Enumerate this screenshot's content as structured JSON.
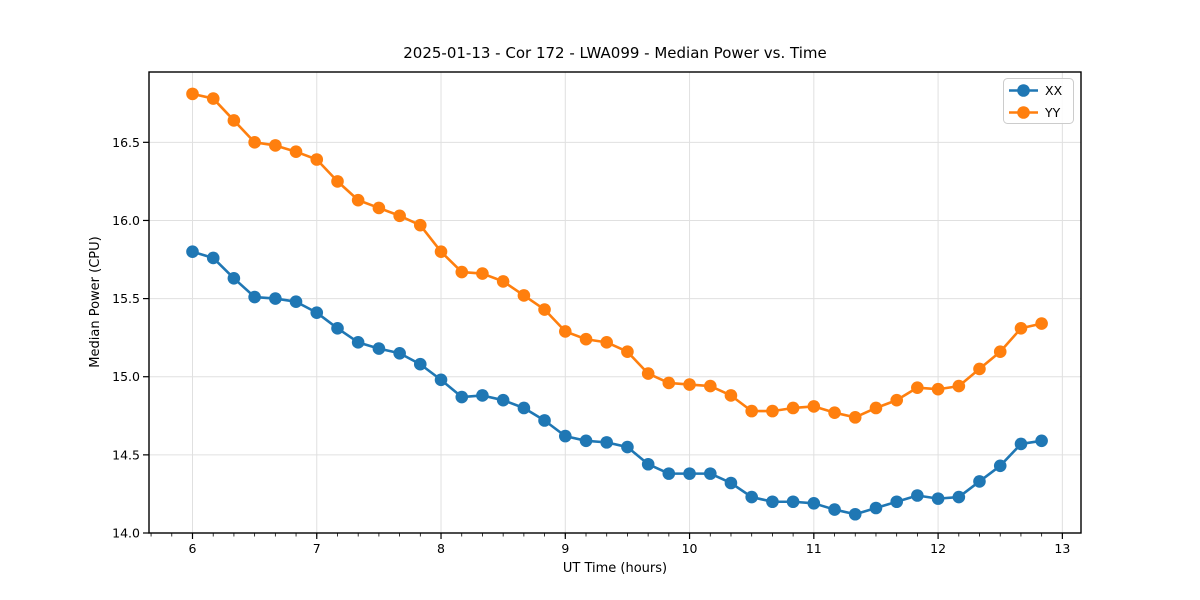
{
  "chart_data": {
    "type": "line",
    "title": "2025-01-13 - Cor 172 - LWA099 - Median Power vs. Time",
    "xlabel": "UT Time (hours)",
    "ylabel": "Median Power (CPU)",
    "xlim": [
      5.65,
      13.15
    ],
    "ylim": [
      14.0,
      16.95
    ],
    "xticks": [
      6,
      7,
      8,
      9,
      10,
      11,
      12,
      13
    ],
    "xticklabels": [
      "6",
      "7",
      "8",
      "9",
      "10",
      "11",
      "12",
      "13"
    ],
    "yticks": [
      14.0,
      14.5,
      15.0,
      15.5,
      16.0,
      16.5
    ],
    "yticklabels": [
      "14.0",
      "14.5",
      "15.0",
      "15.5",
      "16.0",
      "16.5"
    ],
    "x_minor_interval": 0.166667,
    "grid": true,
    "grid_color": "#e0e0e0",
    "legend_position": "upper right",
    "marker": "circle",
    "x": [
      6.0,
      6.167,
      6.333,
      6.5,
      6.667,
      6.833,
      7.0,
      7.167,
      7.333,
      7.5,
      7.667,
      7.833,
      8.0,
      8.167,
      8.333,
      8.5,
      8.667,
      8.833,
      9.0,
      9.167,
      9.333,
      9.5,
      9.667,
      9.833,
      10.0,
      10.167,
      10.333,
      10.5,
      10.667,
      10.833,
      11.0,
      11.167,
      11.333,
      11.5,
      11.667,
      11.833,
      12.0,
      12.167,
      12.333,
      12.5,
      12.667,
      12.833
    ],
    "series": [
      {
        "name": "XX",
        "color": "#1f77b4",
        "values": [
          15.8,
          15.76,
          15.63,
          15.51,
          15.5,
          15.48,
          15.41,
          15.31,
          15.22,
          15.18,
          15.15,
          15.08,
          14.98,
          14.87,
          14.88,
          14.85,
          14.8,
          14.72,
          14.62,
          14.59,
          14.58,
          14.55,
          14.44,
          14.38,
          14.38,
          14.38,
          14.32,
          14.23,
          14.2,
          14.2,
          14.19,
          14.15,
          14.12,
          14.16,
          14.2,
          14.24,
          14.22,
          14.23,
          14.33,
          14.43,
          14.57,
          14.59
        ]
      },
      {
        "name": "YY",
        "color": "#ff7f0e",
        "values": [
          16.81,
          16.78,
          16.64,
          16.5,
          16.48,
          16.44,
          16.39,
          16.25,
          16.13,
          16.08,
          16.03,
          15.97,
          15.8,
          15.67,
          15.66,
          15.61,
          15.52,
          15.43,
          15.29,
          15.24,
          15.22,
          15.16,
          15.02,
          14.96,
          14.95,
          14.94,
          14.88,
          14.78,
          14.78,
          14.8,
          14.81,
          14.77,
          14.74,
          14.8,
          14.85,
          14.93,
          14.92,
          14.94,
          15.05,
          15.16,
          15.31,
          15.34
        ]
      }
    ]
  }
}
